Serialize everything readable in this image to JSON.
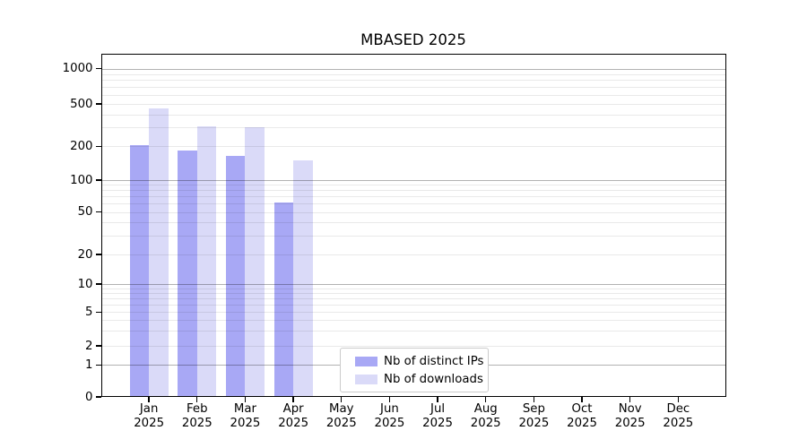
{
  "chart_data": {
    "type": "bar",
    "title": "MBASED 2025",
    "categories": [
      "Jan",
      "Feb",
      "Mar",
      "Apr",
      "May",
      "Jun",
      "Jul",
      "Aug",
      "Sep",
      "Oct",
      "Nov",
      "Dec"
    ],
    "category_year": "2025",
    "series": [
      {
        "name": "Nb of distinct IPs",
        "color": "#a8a8f5",
        "values": [
          205,
          185,
          165,
          62,
          null,
          null,
          null,
          null,
          null,
          null,
          null,
          null
        ]
      },
      {
        "name": "Nb of downloads",
        "color": "#dadaf8",
        "values": [
          455,
          310,
          305,
          150,
          null,
          null,
          null,
          null,
          null,
          null,
          null,
          null
        ]
      }
    ],
    "xlabel": "",
    "ylabel": "",
    "yaxis": {
      "scale": "symlog",
      "ticks": [
        0,
        1,
        2,
        5,
        10,
        20,
        50,
        100,
        200,
        500,
        1000
      ],
      "range": [
        0,
        1400
      ]
    },
    "grid": {
      "orientation": "horizontal",
      "major_at": [
        1,
        10,
        100,
        1000
      ],
      "minor": "2-9 per decade"
    },
    "legend": {
      "position": "lower-center-inside",
      "entries": [
        "Nb of distinct IPs",
        "Nb of downloads"
      ]
    }
  }
}
